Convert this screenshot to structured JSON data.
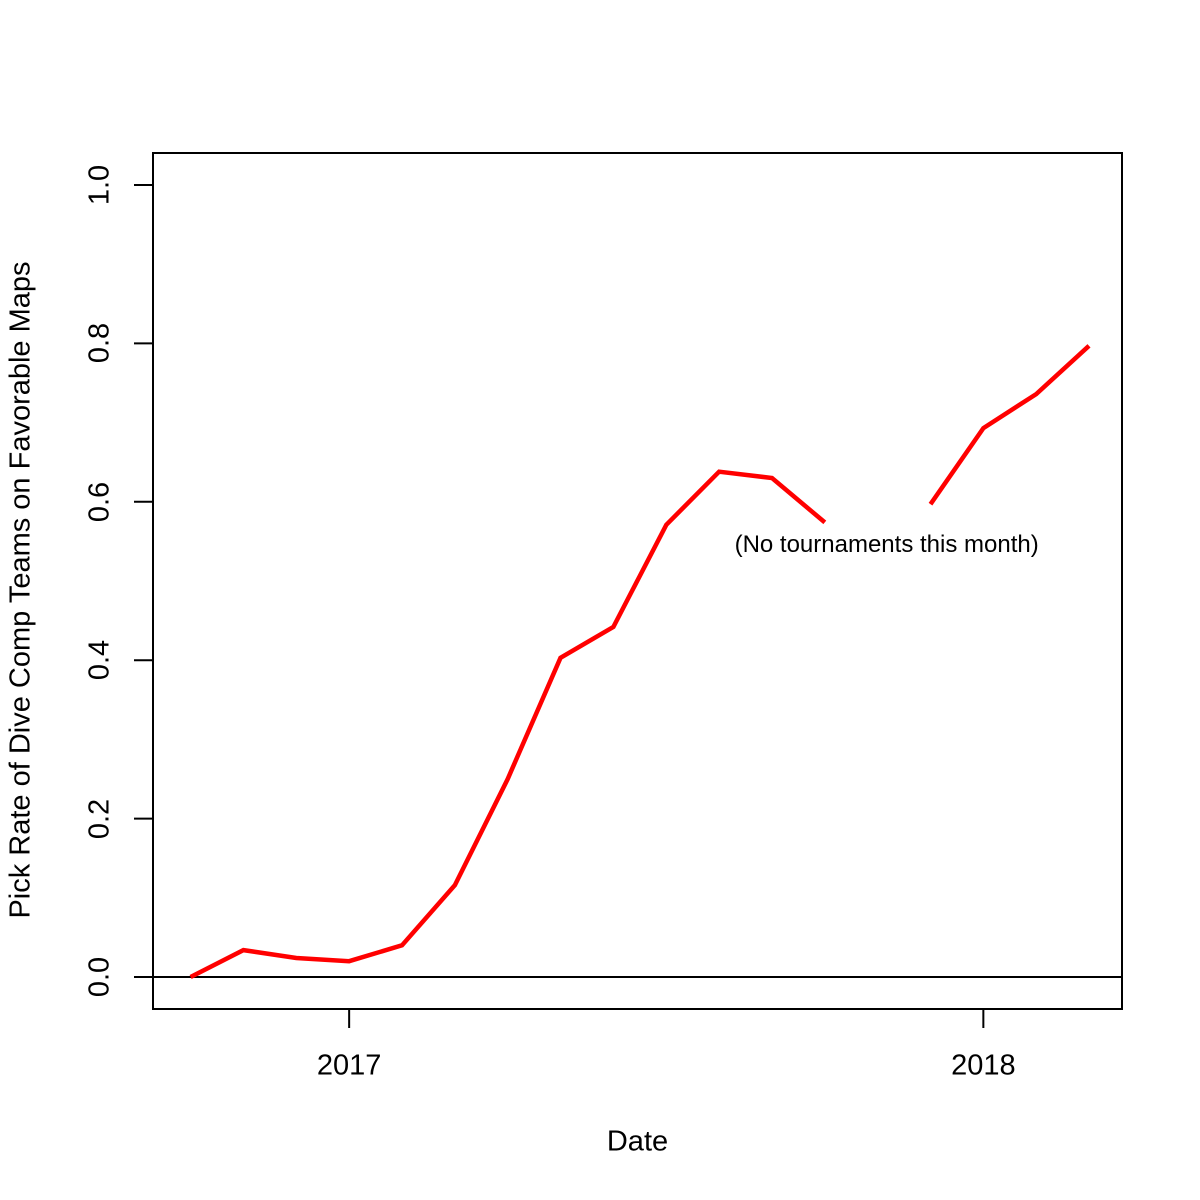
{
  "figure": {
    "background": "#FFFFFF",
    "text_color": "#000000"
  },
  "chart_data": {
    "type": "line",
    "title": "",
    "xlabel": "Date",
    "ylabel": "Pick Rate of Dive Comp Teams on Favorable Maps",
    "ylim": [
      0.0,
      1.0
    ],
    "grid": false,
    "legend": null,
    "line_color": "#FF0000",
    "axis_color": "#000000",
    "zero_line": true,
    "y_ticks": [
      0.0,
      0.2,
      0.4,
      0.6,
      0.8,
      1.0
    ],
    "y_tick_labels": [
      "0.0",
      "0.2",
      "0.4",
      "0.6",
      "0.8",
      "1.0"
    ],
    "x_tick_labels": [
      "2017",
      "2018"
    ],
    "x_ticks_at": [
      "2017-01",
      "2018-01"
    ],
    "annotation": {
      "text": "(No tournaments this month)",
      "x_month": "2017-11",
      "y": 0.545
    },
    "series": [
      {
        "name": "pick_rate",
        "x": [
          "2016-10",
          "2016-11",
          "2016-12",
          "2017-01",
          "2017-02",
          "2017-03",
          "2017-04",
          "2017-05",
          "2017-06",
          "2017-07",
          "2017-08",
          "2017-09",
          "2017-10",
          "2017-11",
          "2017-12",
          "2018-01",
          "2018-02",
          "2018-03"
        ],
        "values": [
          0.0,
          0.034,
          0.024,
          0.02,
          0.04,
          0.116,
          0.25,
          0.403,
          0.442,
          0.571,
          0.638,
          0.63,
          0.574,
          null,
          0.597,
          0.693,
          0.736,
          0.797
        ]
      }
    ]
  }
}
